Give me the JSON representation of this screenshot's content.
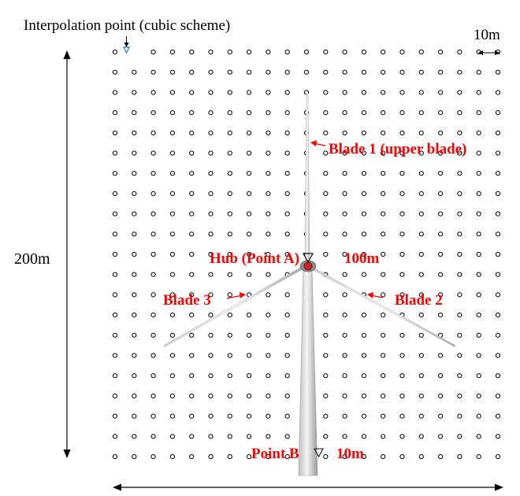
{
  "labels": {
    "interpolation": "Interpolation point (cubic scheme)",
    "spacing_top": "10m",
    "height_dim": "200m",
    "blade1": "Blade 1 (upper blade)",
    "hub": "Hub (Point A)",
    "hub_height": "100m",
    "blade3": "Blade 3",
    "blade2": "Blade 2",
    "point_b": "Point B",
    "point_b_height": "10m"
  },
  "grid": {
    "columns": 21,
    "rows": 21
  },
  "colors": {
    "annotation": "#ff0000",
    "grid_point": "#000000",
    "interp_marker": "#3a6fd8"
  }
}
